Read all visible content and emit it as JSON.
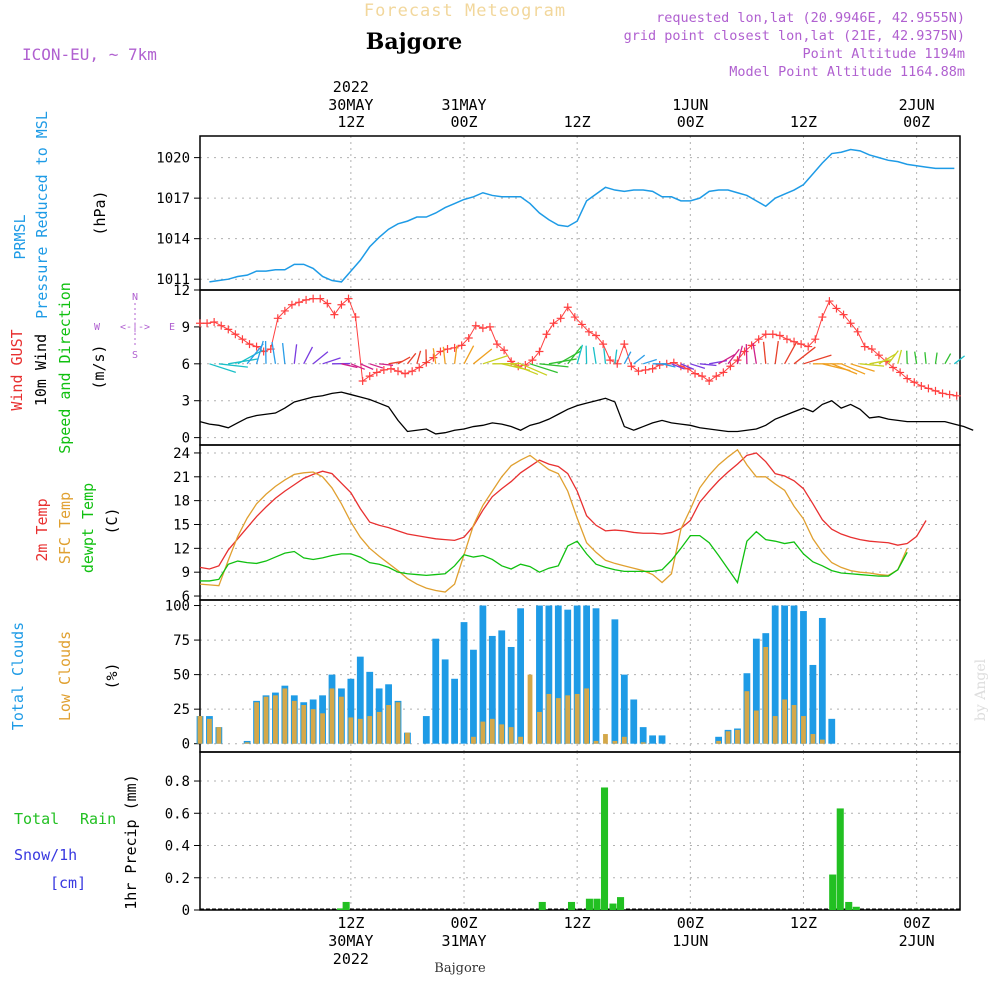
{
  "header": {
    "product": "Forecast Meteogram",
    "location": "Bajgore",
    "model": "ICON-EU, ~ 7km",
    "requested": "requested lon,lat (20.9946E, 42.9555N)",
    "grid": "grid point closest lon,lat (21E, 42.9375N)",
    "point_alt": "Point Altitude 1194m",
    "model_alt": "Model Point Altitude 1164.88m",
    "watermark": "by Angel",
    "bottom_label": "Bajgore"
  },
  "top_axis": {
    "year": "2022",
    "labels": [
      {
        "date": "30MAY",
        "time": "12Z",
        "h": 12
      },
      {
        "date": "31MAY",
        "time": "00Z",
        "h": 24
      },
      {
        "date": "",
        "time": "12Z",
        "h": 36
      },
      {
        "date": "1JUN",
        "time": "00Z",
        "h": 48
      },
      {
        "date": "",
        "time": "12Z",
        "h": 60
      },
      {
        "date": "2JUN",
        "time": "00Z",
        "h": 72
      }
    ]
  },
  "bottom_axis": {
    "labels": [
      {
        "time": "12Z",
        "date": "30MAY",
        "year": "2022",
        "h": 12
      },
      {
        "time": "00Z",
        "date": "31MAY",
        "year": "",
        "h": 24
      },
      {
        "time": "12Z",
        "date": "",
        "year": "",
        "h": 36
      },
      {
        "time": "00Z",
        "date": "1JUN",
        "year": "",
        "h": 48
      },
      {
        "time": "12Z",
        "date": "",
        "year": "",
        "h": 60
      },
      {
        "time": "00Z",
        "date": "2JUN",
        "year": "",
        "h": 72
      }
    ]
  },
  "panel_labels": {
    "prmsl": [
      "PRMSL",
      "Pressure Reduced to MSL",
      "(hPa)"
    ],
    "wind": [
      "Wind GUST",
      "10m Wind",
      "Speed and Direction",
      "(m/s)"
    ],
    "compass": {
      "n": "N",
      "s": "S",
      "w": "W",
      "e": "E",
      "arrows": "<-|->"
    },
    "temp": [
      "2m Temp",
      "SFC Temp",
      "dewpt Temp",
      "(C)"
    ],
    "clouds": [
      "Total Clouds",
      "Low Clouds",
      "(%)"
    ],
    "precip": [
      "Total",
      "Rain",
      "Snow/1h",
      "[cm]",
      "1hr Precip (mm)"
    ]
  },
  "colors": {
    "pressure": "#1e9be6",
    "gust": "#ff4040",
    "wind_speed": "#000000",
    "temp2m": "#e83030",
    "sfc": "#e0a030",
    "dewpt": "#10c010",
    "total_clouds": "#1e9be6",
    "low_clouds": "#d4a84a",
    "rain": "#22c022",
    "snow": "#3838e0",
    "purple": "#b060d0",
    "sfc_label": "#e0a030"
  },
  "chart_data": [
    {
      "type": "line",
      "name": "PRMSL",
      "ylabel": "(hPa)",
      "ylim": [
        1010.2,
        1021.6
      ],
      "yticks": [
        1011,
        1014,
        1017,
        1020
      ],
      "x_hours": "hours since 2022-05-30 00Z",
      "x": [
        -3,
        -2,
        -1,
        0,
        1,
        2,
        3,
        4,
        5,
        6,
        7,
        8,
        9,
        10,
        11,
        12,
        13,
        14,
        15,
        16,
        17,
        18,
        19,
        20,
        21,
        22,
        23,
        24,
        25,
        26,
        27,
        28,
        29,
        30,
        31,
        32,
        33,
        34,
        35,
        36,
        37,
        38,
        39,
        40,
        41,
        42,
        43,
        44,
        45,
        46,
        47,
        48,
        49,
        50,
        51,
        52,
        53,
        54,
        55,
        56,
        57,
        58,
        59,
        60,
        61,
        62,
        63,
        64,
        65,
        66,
        67,
        68,
        69,
        70,
        71,
        72,
        73,
        74,
        75,
        76
      ],
      "values": [
        1010.8,
        1010.9,
        1011.0,
        1011.2,
        1011.3,
        1011.6,
        1011.6,
        1011.7,
        1011.7,
        1012.1,
        1012.1,
        1011.8,
        1011.2,
        1010.9,
        1010.8,
        1011.6,
        1012.4,
        1013.4,
        1014.1,
        1014.7,
        1015.1,
        1015.3,
        1015.6,
        1015.6,
        1015.9,
        1016.3,
        1016.6,
        1016.9,
        1017.1,
        1017.4,
        1017.2,
        1017.1,
        1017.1,
        1017.1,
        1016.6,
        1015.9,
        1015.4,
        1015.0,
        1014.9,
        1015.3,
        1016.8,
        1017.3,
        1017.8,
        1017.6,
        1017.5,
        1017.6,
        1017.6,
        1017.5,
        1017.1,
        1017.1,
        1016.8,
        1016.8,
        1017.0,
        1017.5,
        1017.6,
        1017.6,
        1017.4,
        1017.2,
        1016.8,
        1016.4,
        1017.0,
        1017.3,
        1017.6,
        1018.0,
        1018.8,
        1019.6,
        1020.3,
        1020.4,
        1020.6,
        1020.5,
        1020.2,
        1020.0,
        1019.8,
        1019.7,
        1019.5,
        1019.4,
        1019.3,
        1019.2,
        1019.2,
        1019.2
      ]
    },
    {
      "type": "line",
      "name": "Wind",
      "ylabel": "(m/s)",
      "ylim": [
        -0.6,
        12
      ],
      "yticks": [
        0,
        3,
        6,
        9,
        12
      ],
      "x_hours": "hours since 2022-05-30 00Z",
      "gust": [
        9.3,
        9.3,
        9.4,
        9.1,
        8.8,
        8.4,
        8.0,
        7.6,
        7.4,
        7.0,
        7.2,
        9.7,
        10.3,
        10.8,
        11.0,
        11.2,
        11.3,
        11.3,
        10.9,
        10.0,
        10.8,
        11.3,
        9.8,
        4.6,
        5.0,
        5.3,
        5.5,
        5.6,
        5.4,
        5.2,
        5.4,
        5.7,
        6.1,
        6.5,
        7.0,
        7.2,
        7.3,
        7.5,
        8.1,
        9.1,
        8.9,
        9.0,
        7.6,
        7.1,
        6.2,
        5.8,
        5.9,
        6.3,
        7.0,
        8.4,
        9.3,
        9.7,
        10.6,
        9.8,
        9.2,
        8.6,
        8.3,
        7.6,
        6.3,
        6.0,
        7.6,
        5.8,
        5.4,
        5.5,
        5.6,
        5.9,
        6.0,
        6.1,
        5.8,
        5.6,
        5.2,
        5.0,
        4.6,
        5.0,
        5.3,
        5.8,
        6.3,
        7.0,
        7.5,
        8.0,
        8.4,
        8.4,
        8.3,
        8.0,
        7.8,
        7.6,
        7.4,
        8.0,
        9.8,
        11.1,
        10.5,
        10.0,
        9.3,
        8.6,
        7.4,
        7.2,
        6.7,
        6.2,
        5.7,
        5.3,
        4.8,
        4.5,
        4.2,
        4.0,
        3.8,
        3.6,
        3.5,
        3.4,
        3.2,
        3.0
      ],
      "speed": [
        1.3,
        1.1,
        1.0,
        0.8,
        1.2,
        1.6,
        1.8,
        1.9,
        2.0,
        2.4,
        2.9,
        3.1,
        3.3,
        3.4,
        3.6,
        3.7,
        3.5,
        3.3,
        3.1,
        2.8,
        2.5,
        1.4,
        0.5,
        0.6,
        0.7,
        0.3,
        0.4,
        0.6,
        0.7,
        0.9,
        1.0,
        1.2,
        1.1,
        0.9,
        0.6,
        1.0,
        1.2,
        1.5,
        1.9,
        2.3,
        2.6,
        2.8,
        3.0,
        3.2,
        2.9,
        0.9,
        0.6,
        0.9,
        1.2,
        1.4,
        1.2,
        1.1,
        1.0,
        0.8,
        0.7,
        0.6,
        0.5,
        0.5,
        0.6,
        0.7,
        1.0,
        1.5,
        1.8,
        2.1,
        2.4,
        2.1,
        2.7,
        3.0,
        2.4,
        2.7,
        2.3,
        1.6,
        1.7,
        1.5,
        1.4,
        1.3,
        1.3,
        1.3,
        1.3,
        1.3,
        1.1,
        0.9,
        0.6
      ],
      "x_speed_start": -4,
      "x_speed_step": 1,
      "x_gust_start": -4,
      "x_gust_step": 0.75
    },
    {
      "type": "line",
      "name": "Temperature",
      "ylabel": "(C)",
      "ylim": [
        5.5,
        25
      ],
      "yticks": [
        6,
        9,
        12,
        15,
        18,
        21,
        24
      ],
      "x_hours": "hours since 2022-05-30 00Z",
      "x_start": -4,
      "temp2m": [
        9.6,
        9.4,
        9.8,
        11.8,
        13.2,
        14.6,
        16.0,
        17.2,
        18.3,
        19.2,
        20.0,
        20.8,
        21.3,
        21.7,
        21.4,
        20.2,
        19.0,
        17.0,
        15.3,
        14.9,
        14.6,
        14.2,
        13.8,
        13.6,
        13.4,
        13.2,
        13.1,
        13.0,
        13.4,
        14.8,
        16.8,
        18.5,
        19.5,
        20.4,
        21.5,
        22.3,
        23.1,
        22.6,
        22.3,
        21.4,
        19.2,
        16.1,
        14.9,
        14.2,
        14.3,
        14.2,
        14.0,
        13.9,
        13.9,
        13.8,
        14.0,
        14.5,
        15.5,
        17.8,
        19.2,
        20.5,
        21.6,
        22.6,
        23.7,
        24.0,
        22.9,
        21.4,
        21.1,
        20.5,
        19.5,
        17.6,
        15.6,
        14.4,
        13.8,
        13.4,
        13.1,
        12.9,
        12.8,
        12.7,
        12.4,
        12.6,
        13.5,
        15.5
      ],
      "sfc": [
        7.5,
        7.4,
        7.3,
        10.5,
        13.5,
        15.8,
        17.6,
        18.8,
        19.8,
        20.6,
        21.3,
        21.5,
        21.6,
        21.0,
        19.6,
        17.6,
        15.3,
        13.4,
        12.0,
        11.0,
        10.1,
        9.2,
        8.2,
        7.5,
        7.0,
        6.7,
        6.5,
        7.5,
        11.2,
        14.9,
        17.4,
        19.2,
        21.0,
        22.4,
        23.1,
        23.7,
        22.8,
        21.9,
        21.4,
        19.2,
        15.8,
        12.7,
        11.5,
        10.5,
        10.1,
        9.8,
        9.5,
        9.2,
        8.7,
        7.7,
        8.8,
        14.4,
        16.9,
        19.6,
        21.2,
        22.5,
        23.5,
        24.4,
        22.5,
        21.0,
        21.0,
        20.1,
        19.3,
        17.3,
        15.7,
        13.2,
        11.5,
        10.2,
        9.6,
        9.2,
        9.0,
        8.9,
        8.7,
        8.6,
        9.3,
        12.0
      ],
      "dewpt": [
        7.9,
        7.9,
        8.1,
        10.0,
        10.4,
        10.2,
        10.1,
        10.4,
        10.9,
        11.4,
        11.6,
        10.8,
        10.6,
        10.8,
        11.1,
        11.3,
        11.3,
        10.9,
        10.2,
        10.0,
        9.6,
        9.0,
        8.8,
        8.7,
        8.6,
        8.7,
        8.8,
        9.8,
        11.2,
        10.9,
        11.1,
        10.6,
        9.8,
        9.4,
        10.0,
        9.7,
        9.0,
        9.5,
        9.8,
        12.3,
        12.9,
        11.3,
        10.0,
        9.6,
        9.3,
        9.1,
        9.1,
        9.1,
        9.1,
        9.3,
        10.5,
        12.0,
        13.6,
        13.6,
        12.7,
        11.1,
        9.4,
        7.7,
        12.9,
        14.1,
        13.1,
        12.9,
        12.6,
        12.8,
        11.3,
        10.3,
        9.8,
        9.2,
        8.9,
        8.8,
        8.7,
        8.6,
        8.5,
        8.5,
        9.3,
        11.5
      ]
    },
    {
      "type": "bar",
      "name": "Clouds",
      "ylabel": "(%)",
      "ylim": [
        -6,
        104
      ],
      "yticks": [
        0,
        25,
        50,
        75,
        100
      ],
      "x_hours": "hours since 2022-05-30 00Z",
      "x_start": -4,
      "total": [
        20,
        20,
        12,
        0,
        0,
        2,
        31,
        35,
        37,
        42,
        35,
        30,
        32,
        35,
        50,
        40,
        47,
        63,
        52,
        40,
        43,
        31,
        8,
        0,
        20,
        76,
        61,
        47,
        88,
        68,
        100,
        78,
        82,
        70,
        98,
        0,
        100,
        100,
        100,
        97,
        100,
        100,
        98,
        0,
        90,
        50,
        32,
        12,
        6,
        6,
        0,
        0,
        0,
        0,
        0,
        5,
        10,
        11,
        51,
        76,
        80,
        100,
        100,
        100,
        96,
        57,
        91,
        18,
        0,
        0,
        0,
        0,
        0,
        0,
        0,
        0,
        0
      ],
      "low": [
        20,
        18,
        12,
        0,
        0,
        1,
        30,
        34,
        35,
        40,
        31,
        28,
        25,
        22,
        40,
        34,
        19,
        18,
        20,
        23,
        28,
        30,
        8,
        0,
        0,
        0,
        0,
        0,
        0,
        5,
        16,
        18,
        14,
        12,
        5,
        50,
        23,
        36,
        33,
        35,
        36,
        40,
        2,
        7,
        2,
        5,
        0,
        1,
        0,
        0,
        0,
        0,
        0,
        0,
        0,
        2,
        9,
        10,
        38,
        24,
        70,
        20,
        32,
        28,
        20,
        7,
        3,
        0,
        0,
        0,
        0,
        0,
        0,
        0,
        0,
        0,
        0
      ]
    },
    {
      "type": "bar",
      "name": "Precipitation",
      "ylabel": "1hr Precip (mm)",
      "ylim": [
        0,
        0.98
      ],
      "yticks": [
        0,
        0.2,
        0.4,
        0.6,
        0.8
      ],
      "x_hours": "hours since 2022-05-30 00Z",
      "rain": [
        {
          "h": 10.9,
          "v": 0.01
        },
        {
          "h": 11.5,
          "v": 0.05
        },
        {
          "h": 32.3,
          "v": 0.05
        },
        {
          "h": 35.4,
          "v": 0.05
        },
        {
          "h": 37.3,
          "v": 0.07
        },
        {
          "h": 38.1,
          "v": 0.07
        },
        {
          "h": 38.9,
          "v": 0.76
        },
        {
          "h": 39.8,
          "v": 0.04
        },
        {
          "h": 40.6,
          "v": 0.08
        },
        {
          "h": 63.1,
          "v": 0.22
        },
        {
          "h": 63.9,
          "v": 0.63
        },
        {
          "h": 64.8,
          "v": 0.05
        },
        {
          "h": 65.6,
          "v": 0.02
        }
      ],
      "snow": []
    }
  ]
}
